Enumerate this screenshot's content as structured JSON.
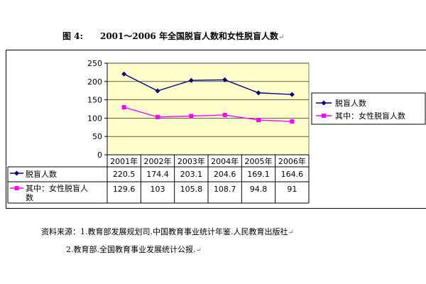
{
  "figure": {
    "label": "图 4:",
    "title": "2001～2006 年全国脱盲人数和女性脱盲人数"
  },
  "chart_data": {
    "type": "line",
    "categories": [
      "2001年",
      "2002年",
      "2003年",
      "2004年",
      "2005年",
      "2006年"
    ],
    "series": [
      {
        "name": "脱盲人数",
        "values": [
          220.5,
          174.4,
          203.1,
          204.6,
          169.1,
          164.6
        ],
        "labels": [
          "220.5",
          "174.4",
          "203.1",
          "204.6",
          "169.1",
          "164.6"
        ],
        "color": "#000080",
        "marker": "diamond"
      },
      {
        "name": "其中：女性脱盲人数",
        "values": [
          129.6,
          103,
          105.8,
          108.7,
          94.8,
          91
        ],
        "labels": [
          "129.6",
          "103",
          "105.8",
          "108.7",
          "94.8",
          "91"
        ],
        "color": "#ff00ff",
        "marker": "square"
      }
    ],
    "ylim": [
      0,
      250
    ],
    "yticks": [
      0,
      50,
      100,
      150,
      200,
      250
    ],
    "grid": true,
    "legend": "right",
    "data_table": true,
    "plot_background": "#ffffcc"
  },
  "source": {
    "line1": "资料来源：1.教育部发展规划司.中国教育事业统计年鉴.人民教育出版社",
    "line2": "2.教育部.全国教育事业发展统计公报."
  },
  "para_mark": "↵"
}
